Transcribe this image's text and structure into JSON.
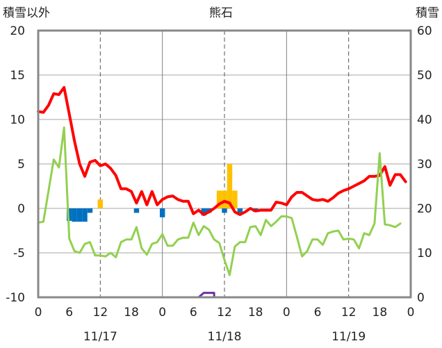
{
  "chart_data": {
    "type": "line",
    "title": "熊石",
    "ylabel_left": "積雪以外",
    "ylabel_right": "積雪",
    "ylim_left": [
      -10,
      20
    ],
    "ylim_right": [
      0,
      60
    ],
    "yticks_left": [
      "20",
      "15",
      "10",
      "5",
      "0",
      "-5",
      "-10"
    ],
    "yticks_right": [
      "60",
      "50",
      "40",
      "30",
      "20",
      "10",
      "0"
    ],
    "x_range_hours": [
      0,
      72
    ],
    "xtick_labels": [
      "0",
      "6",
      "12",
      "18",
      "0",
      "6",
      "12",
      "18",
      "0",
      "6",
      "12",
      "18",
      "0"
    ],
    "date_labels": [
      "11/17",
      "11/18",
      "11/19"
    ],
    "grid": true,
    "series": [
      {
        "color": "#ff0000",
        "axis": "left",
        "values": [
          10.9,
          10.8,
          11.6,
          12.9,
          12.8,
          13.6,
          10.6,
          7.6,
          5.0,
          3.6,
          5.2,
          5.4,
          4.8,
          5.0,
          4.5,
          3.7,
          2.2,
          2.2,
          1.9,
          0.6,
          1.9,
          0.4,
          1.9,
          0.4,
          1.0,
          1.3,
          1.4,
          1.0,
          0.8,
          0.8,
          -0.6,
          -0.2,
          -0.7,
          -0.4,
          0.0,
          0.5,
          0.8,
          0.6,
          -0.4,
          -0.7,
          -0.4,
          0.0,
          -0.3,
          -0.2,
          -0.2,
          -0.2,
          0.7,
          0.6,
          0.4,
          1.3,
          1.8,
          1.8,
          1.4,
          1.0,
          0.9,
          1.0,
          0.8,
          1.2,
          1.7,
          2.0,
          2.2,
          2.5,
          2.8,
          3.1,
          3.6,
          3.6,
          3.7,
          4.7,
          2.6,
          3.8,
          3.8,
          3.0
        ]
      },
      {
        "color": "#92d050",
        "axis": "left",
        "values": [
          -1.6,
          -1.5,
          2.0,
          5.5,
          4.6,
          9.1,
          -3.4,
          -4.8,
          -5.0,
          -4.0,
          -3.8,
          -5.3,
          -5.3,
          -5.4,
          -5.0,
          -5.5,
          -3.8,
          -3.5,
          -3.5,
          -2.1,
          -4.5,
          -5.2,
          -4.0,
          -3.8,
          -2.9,
          -4.2,
          -4.2,
          -3.5,
          -3.3,
          -3.3,
          -1.6,
          -3.0,
          -2.0,
          -2.4,
          -3.5,
          -3.9,
          -5.8,
          -7.5,
          -4.3,
          -3.8,
          -3.8,
          -2.1,
          -2.0,
          -3.0,
          -1.3,
          -2.0,
          -1.5,
          -0.9,
          -0.9,
          -1.1,
          -3.2,
          -5.4,
          -4.8,
          -3.5,
          -3.5,
          -4.1,
          -2.8,
          -2.6,
          -2.5,
          -3.5,
          -3.4,
          -3.5,
          -4.5,
          -2.8,
          -3.0,
          -1.7,
          6.2,
          -1.8,
          -1.9,
          -2.1,
          -1.7
        ]
      },
      {
        "color": "#7030a0",
        "axis": "right",
        "points": [
          [
            0,
            0
          ],
          [
            31,
            0
          ],
          [
            32,
            1
          ],
          [
            34,
            1
          ],
          [
            34,
            0
          ],
          [
            72,
            0
          ]
        ]
      }
    ],
    "bars_orange": {
      "color": "#ffc000",
      "values": [
        [
          12,
          1.0
        ],
        [
          35,
          2.0
        ],
        [
          36,
          2.0
        ],
        [
          37,
          5.0
        ],
        [
          38,
          2.0
        ]
      ]
    },
    "bars_blue": {
      "color": "#0070c0",
      "values": [
        [
          6,
          -1.4
        ],
        [
          7,
          -1.5
        ],
        [
          8,
          -1.5
        ],
        [
          9,
          -1.5
        ],
        [
          10,
          -0.5
        ],
        [
          19,
          -0.5
        ],
        [
          24,
          -1.0
        ],
        [
          32,
          -0.8
        ],
        [
          33,
          -0.5
        ],
        [
          36,
          -0.5
        ],
        [
          39,
          -0.5
        ],
        [
          42,
          -0.4
        ]
      ]
    }
  }
}
